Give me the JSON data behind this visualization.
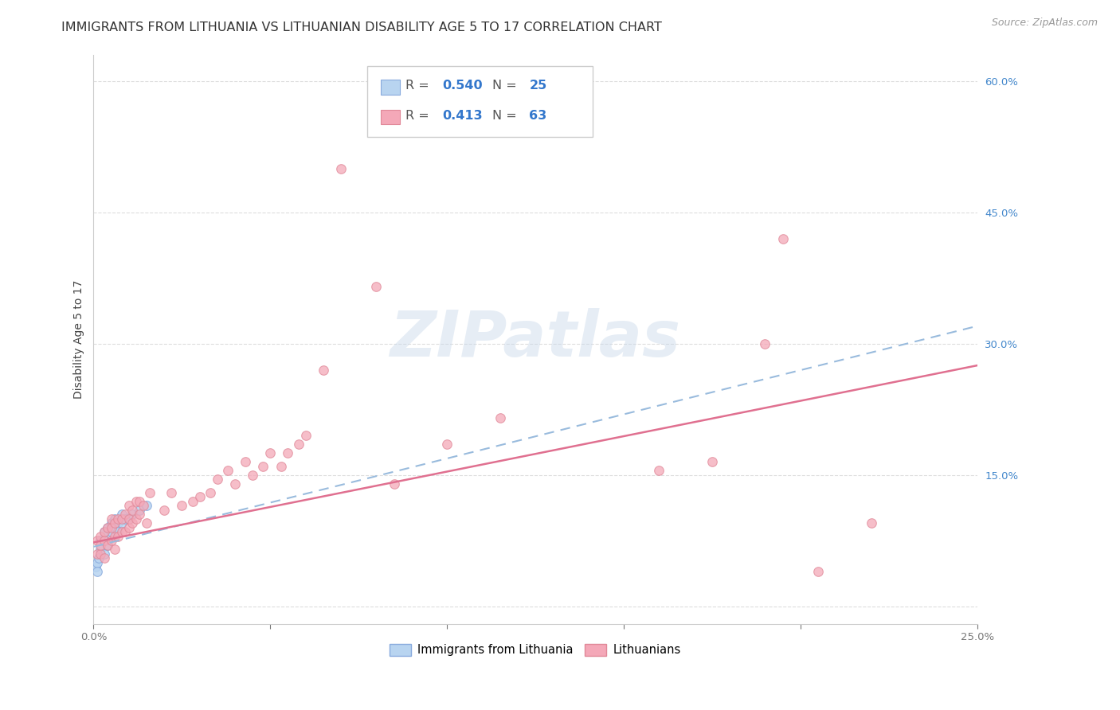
{
  "title": "IMMIGRANTS FROM LITHUANIA VS LITHUANIAN DISABILITY AGE 5 TO 17 CORRELATION CHART",
  "source": "Source: ZipAtlas.com",
  "ylabel": "Disability Age 5 to 17",
  "xlim": [
    0.0,
    0.25
  ],
  "ylim": [
    -0.02,
    0.63
  ],
  "xticks": [
    0.0,
    0.05,
    0.1,
    0.15,
    0.2,
    0.25
  ],
  "yticks": [
    0.0,
    0.15,
    0.3,
    0.45,
    0.6
  ],
  "legend_entries": [
    {
      "label": "Immigrants from Lithuania",
      "color": "#b8d4f0",
      "edge": "#88aadd",
      "R": "0.540",
      "N": "25"
    },
    {
      "label": "Lithuanians",
      "color": "#f4a8b8",
      "edge": "#e08898",
      "R": "0.413",
      "N": "63"
    }
  ],
  "watermark": "ZIPatlas",
  "blue_scatter_x": [
    0.0005,
    0.001,
    0.001,
    0.0015,
    0.002,
    0.002,
    0.003,
    0.003,
    0.003,
    0.004,
    0.004,
    0.005,
    0.005,
    0.005,
    0.006,
    0.006,
    0.007,
    0.007,
    0.008,
    0.008,
    0.009,
    0.01,
    0.011,
    0.013,
    0.015
  ],
  "blue_scatter_y": [
    0.045,
    0.05,
    0.04,
    0.055,
    0.065,
    0.075,
    0.06,
    0.075,
    0.085,
    0.07,
    0.09,
    0.08,
    0.085,
    0.095,
    0.09,
    0.1,
    0.095,
    0.085,
    0.095,
    0.105,
    0.1,
    0.1,
    0.105,
    0.11,
    0.115
  ],
  "pink_scatter_x": [
    0.001,
    0.001,
    0.002,
    0.002,
    0.002,
    0.003,
    0.003,
    0.003,
    0.004,
    0.004,
    0.005,
    0.005,
    0.005,
    0.006,
    0.006,
    0.006,
    0.007,
    0.007,
    0.008,
    0.008,
    0.009,
    0.009,
    0.01,
    0.01,
    0.01,
    0.011,
    0.011,
    0.012,
    0.012,
    0.013,
    0.013,
    0.014,
    0.015,
    0.016,
    0.02,
    0.022,
    0.025,
    0.028,
    0.03,
    0.033,
    0.035,
    0.038,
    0.04,
    0.043,
    0.045,
    0.048,
    0.05,
    0.053,
    0.055,
    0.058,
    0.06,
    0.065,
    0.07,
    0.08,
    0.085,
    0.1,
    0.115,
    0.16,
    0.175,
    0.19,
    0.205,
    0.22,
    0.195
  ],
  "pink_scatter_y": [
    0.06,
    0.075,
    0.06,
    0.07,
    0.08,
    0.055,
    0.075,
    0.085,
    0.07,
    0.09,
    0.075,
    0.09,
    0.1,
    0.065,
    0.08,
    0.095,
    0.08,
    0.1,
    0.085,
    0.1,
    0.085,
    0.105,
    0.09,
    0.1,
    0.115,
    0.095,
    0.11,
    0.1,
    0.12,
    0.105,
    0.12,
    0.115,
    0.095,
    0.13,
    0.11,
    0.13,
    0.115,
    0.12,
    0.125,
    0.13,
    0.145,
    0.155,
    0.14,
    0.165,
    0.15,
    0.16,
    0.175,
    0.16,
    0.175,
    0.185,
    0.195,
    0.27,
    0.5,
    0.365,
    0.14,
    0.185,
    0.215,
    0.155,
    0.165,
    0.3,
    0.04,
    0.095,
    0.42
  ],
  "blue_line": {
    "x0": 0.0,
    "x1": 0.25,
    "y0": 0.068,
    "y1": 0.32
  },
  "pink_line": {
    "x0": 0.0,
    "x1": 0.25,
    "y0": 0.073,
    "y1": 0.275
  },
  "background_color": "#ffffff",
  "grid_color": "#dddddd",
  "title_fontsize": 11.5,
  "axis_label_fontsize": 10,
  "tick_fontsize": 10,
  "scatter_size": 70
}
